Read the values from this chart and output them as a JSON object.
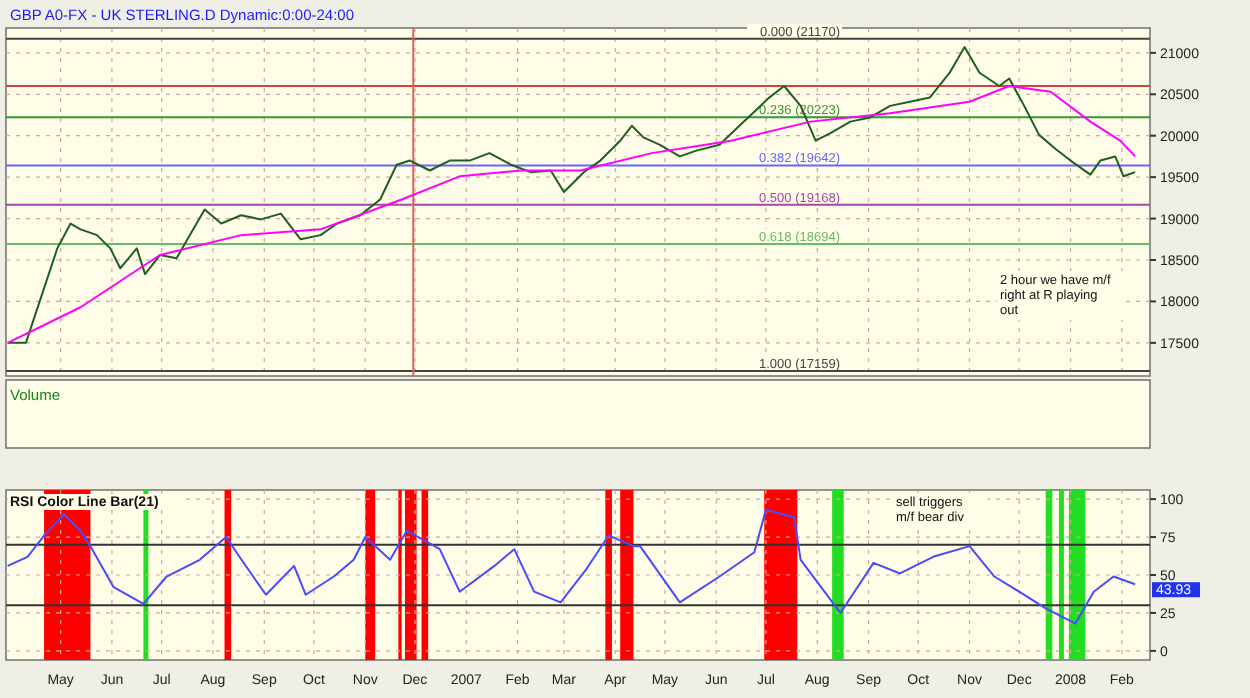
{
  "chart_data": [
    {
      "type": "line",
      "title": "GBP A0-FX - UK STERLING.D Dynamic:0:00-24:00",
      "xlim": [
        "2006-04-12",
        "2008-03-03"
      ],
      "ylim": [
        17100,
        21300
      ],
      "yticks": [
        17500,
        18000,
        18500,
        19000,
        19500,
        20000,
        20500,
        21000
      ],
      "tick_labels": "y",
      "grid": true,
      "xticks": [
        {
          "value": "2006-05-15",
          "label": null
        },
        {
          "value": "2006-06-15",
          "label": null
        },
        {
          "value": "2006-07-15",
          "label": null
        },
        {
          "value": "2006-08-15",
          "label": null
        },
        {
          "value": "2006-09-15",
          "label": null
        },
        {
          "value": "2006-10-15",
          "label": null
        },
        {
          "value": "2006-11-15",
          "label": null
        },
        {
          "value": "2006-12-15",
          "label": null
        },
        {
          "value": "2007-01-15",
          "label": null
        },
        {
          "value": "2007-02-15",
          "label": null
        },
        {
          "value": "2007-03-15",
          "label": null
        },
        {
          "value": "2007-04-15",
          "label": null
        },
        {
          "value": "2007-05-15",
          "label": null
        },
        {
          "value": "2007-06-15",
          "label": null
        },
        {
          "value": "2007-07-15",
          "label": null
        },
        {
          "value": "2007-08-15",
          "label": null
        },
        {
          "value": "2007-09-15",
          "label": null
        },
        {
          "value": "2007-10-15",
          "label": null
        },
        {
          "value": "2007-11-15",
          "label": null
        },
        {
          "value": "2007-12-15",
          "label": null
        },
        {
          "value": "2008-01-15",
          "label": null
        },
        {
          "value": "2008-02-15",
          "label": null
        }
      ],
      "series": [
        {
          "color": "#1f5f1f",
          "x": [
            "2006-04-13",
            "2006-04-24",
            "2006-05-03",
            "2006-05-13",
            "2006-05-21",
            "2006-05-27",
            "2006-06-06",
            "2006-06-14",
            "2006-06-20",
            "2006-06-30",
            "2006-07-05",
            "2006-07-14",
            "2006-07-24",
            "2006-08-01",
            "2006-08-10",
            "2006-08-20",
            "2006-09-01",
            "2006-09-13",
            "2006-09-25",
            "2006-10-07",
            "2006-10-19",
            "2006-10-29",
            "2006-11-12",
            "2006-11-24",
            "2006-12-04",
            "2006-12-12",
            "2006-12-24",
            "2007-01-05",
            "2007-01-17",
            "2007-01-29",
            "2007-02-11",
            "2007-02-23",
            "2007-03-07",
            "2007-03-15",
            "2007-03-27",
            "2007-04-06",
            "2007-04-18",
            "2007-04-25",
            "2007-05-02",
            "2007-05-12",
            "2007-05-24",
            "2007-06-03",
            "2007-06-17",
            "2007-06-29",
            "2007-07-17",
            "2007-07-26",
            "2007-08-05",
            "2007-08-14",
            "2007-08-23",
            "2007-09-04",
            "2007-09-16",
            "2007-09-28",
            "2007-10-10",
            "2007-10-22",
            "2007-11-03",
            "2007-11-12",
            "2007-11-21",
            "2007-12-03",
            "2007-12-09",
            "2007-12-18",
            "2007-12-27",
            "2008-01-06",
            "2008-01-15",
            "2008-01-27",
            "2008-02-02",
            "2008-02-11",
            "2008-02-16",
            "2008-02-23"
          ],
          "values": [
            17500,
            17500,
            18040,
            18640,
            18940,
            18870,
            18800,
            18640,
            18400,
            18640,
            18330,
            18560,
            18520,
            18800,
            19110,
            18940,
            19040,
            18990,
            19060,
            18750,
            18800,
            18940,
            19040,
            19230,
            19650,
            19700,
            19580,
            19700,
            19700,
            19790,
            19650,
            19560,
            19580,
            19320,
            19560,
            19700,
            19940,
            20120,
            19980,
            19890,
            19750,
            19820,
            19890,
            20120,
            20460,
            20600,
            20360,
            19940,
            20030,
            20170,
            20220,
            20360,
            20410,
            20460,
            20760,
            21070,
            20760,
            20600,
            20690,
            20360,
            20010,
            19840,
            19700,
            19530,
            19700,
            19750,
            19510,
            19560
          ]
        },
        {
          "color": "#ff00ff",
          "x": [
            "2006-04-13",
            "2006-05-27",
            "2006-07-14",
            "2006-09-01",
            "2006-10-19",
            "2006-12-07",
            "2007-01-11",
            "2007-02-17",
            "2007-03-25",
            "2007-05-07",
            "2007-06-24",
            "2007-08-11",
            "2007-09-28",
            "2007-11-15",
            "2007-12-09",
            "2008-01-03",
            "2008-01-27",
            "2008-02-14",
            "2008-02-23"
          ],
          "values": [
            17500,
            17930,
            18560,
            18800,
            18870,
            19230,
            19510,
            19580,
            19580,
            19790,
            19940,
            20170,
            20270,
            20410,
            20600,
            20530,
            20170,
            19940,
            19750
          ]
        }
      ],
      "ref_lines": [
        {
          "axis": "y",
          "value": 21170,
          "label": "0.000 (21170)",
          "color": "#444444"
        },
        {
          "axis": "y",
          "value": 20600,
          "label": null,
          "color": "#cc4444"
        },
        {
          "axis": "y",
          "value": 20223,
          "label": "0.236 (20223)",
          "color": "#339933"
        },
        {
          "axis": "y",
          "value": 19642,
          "label": "0.382 (19642)",
          "color": "#6666ff"
        },
        {
          "axis": "y",
          "value": 19168,
          "label": "0.500 (19168)",
          "color": "#aa44aa"
        },
        {
          "axis": "y",
          "value": 18694,
          "label": "0.618 (18694)",
          "color": "#66bb66"
        },
        {
          "axis": "y",
          "value": 17159,
          "label": "1.000 (17159)",
          "color": "#444444"
        },
        {
          "axis": "x",
          "value": "2006-12-14",
          "label": null,
          "color": "#e06060"
        }
      ],
      "annotations": [
        "Volume",
        "2 hour we have m/f right at R playing out"
      ]
    },
    {
      "type": "line",
      "title": "RSI Color Line Bar(21)",
      "xlim": [
        "2006-04-12",
        "2008-03-03"
      ],
      "ylim": [
        -6,
        106
      ],
      "yticks": [
        0,
        25,
        50,
        75,
        100
      ],
      "grid": true,
      "xticks": [
        {
          "value": "2006-05-15",
          "label": "May"
        },
        {
          "value": "2006-06-15",
          "label": "Jun"
        },
        {
          "value": "2006-07-15",
          "label": "Jul"
        },
        {
          "value": "2006-08-15",
          "label": "Aug"
        },
        {
          "value": "2006-09-15",
          "label": "Sep"
        },
        {
          "value": "2006-10-15",
          "label": "Oct"
        },
        {
          "value": "2006-11-15",
          "label": "Nov"
        },
        {
          "value": "2006-12-15",
          "label": "Dec"
        },
        {
          "value": "2007-01-15",
          "label": "2007"
        },
        {
          "value": "2007-02-15",
          "label": "Feb"
        },
        {
          "value": "2007-03-15",
          "label": "Mar"
        },
        {
          "value": "2007-04-15",
          "label": "Apr"
        },
        {
          "value": "2007-05-15",
          "label": "May"
        },
        {
          "value": "2007-06-15",
          "label": "Jun"
        },
        {
          "value": "2007-07-15",
          "label": "Jul"
        },
        {
          "value": "2007-08-15",
          "label": "Aug"
        },
        {
          "value": "2007-09-15",
          "label": "Sep"
        },
        {
          "value": "2007-10-15",
          "label": "Oct"
        },
        {
          "value": "2007-11-15",
          "label": "Nov"
        },
        {
          "value": "2007-12-15",
          "label": "Dec"
        },
        {
          "value": "2008-01-15",
          "label": "2008"
        },
        {
          "value": "2008-02-15",
          "label": "Feb"
        }
      ],
      "series": [
        {
          "color": "#4a4aff",
          "x": [
            "2006-04-13",
            "2006-04-25",
            "2006-05-05",
            "2006-05-17",
            "2006-05-27",
            "2006-06-02",
            "2006-06-16",
            "2006-07-04",
            "2006-07-18",
            "2006-08-07",
            "2006-08-23",
            "2006-08-31",
            "2006-09-16",
            "2006-10-03",
            "2006-10-10",
            "2006-10-27",
            "2006-11-08",
            "2006-11-15",
            "2006-11-30",
            "2006-12-10",
            "2006-12-22",
            "2006-12-30",
            "2007-01-11",
            "2007-02-01",
            "2007-02-13",
            "2007-02-25",
            "2007-03-13",
            "2007-03-28",
            "2007-04-11",
            "2007-04-26",
            "2007-04-30",
            "2007-05-24",
            "2007-06-17",
            "2007-07-08",
            "2007-07-15",
            "2007-08-01",
            "2007-08-05",
            "2007-08-29",
            "2007-09-18",
            "2007-10-04",
            "2007-10-24",
            "2007-11-15",
            "2007-11-30",
            "2007-12-15",
            "2007-12-31",
            "2008-01-18",
            "2008-01-29",
            "2008-02-10",
            "2008-02-23"
          ],
          "values": [
            56,
            62,
            76,
            90,
            79,
            69,
            42,
            31,
            49,
            60,
            75,
            62,
            37,
            56,
            37,
            49,
            60,
            75,
            60,
            79,
            72,
            67,
            39,
            56,
            67,
            39,
            32,
            53,
            76,
            69,
            69,
            32,
            49,
            65,
            93,
            88,
            60,
            25,
            58,
            51,
            62,
            69,
            49,
            39,
            28,
            18,
            39,
            49,
            43.93
          ],
          "value_labels": [
            null,
            null,
            null,
            null,
            null,
            null,
            null,
            null,
            null,
            null,
            null,
            null,
            null,
            null,
            null,
            null,
            null,
            null,
            null,
            null,
            null,
            null,
            null,
            null,
            null,
            null,
            null,
            null,
            null,
            null,
            null,
            null,
            null,
            null,
            null,
            null,
            null,
            null,
            null,
            null,
            null,
            null,
            null,
            null,
            null,
            null,
            null,
            null,
            "43.93"
          ]
        }
      ],
      "ref_lines": [
        {
          "axis": "y",
          "value": 70,
          "label": null,
          "color": "#333333"
        },
        {
          "axis": "y",
          "value": 30,
          "label": null,
          "color": "#333333"
        }
      ],
      "bands": [
        {
          "axis": "x",
          "from": "2006-05-05",
          "to": "2006-06-02",
          "color": "#ff0000"
        },
        {
          "axis": "x",
          "from": "2006-07-04",
          "to": "2006-07-07",
          "color": "#22dd22"
        },
        {
          "axis": "x",
          "from": "2006-08-22",
          "to": "2006-08-26",
          "color": "#ff0000"
        },
        {
          "axis": "x",
          "from": "2006-11-15",
          "to": "2006-11-21",
          "color": "#ff0000"
        },
        {
          "axis": "x",
          "from": "2006-12-05",
          "to": "2006-12-07",
          "color": "#ff0000"
        },
        {
          "axis": "x",
          "from": "2006-12-09",
          "to": "2006-12-16",
          "color": "#ff0000"
        },
        {
          "axis": "x",
          "from": "2006-12-19",
          "to": "2006-12-23",
          "color": "#ff0000"
        },
        {
          "axis": "x",
          "from": "2007-04-09",
          "to": "2007-04-13",
          "color": "#ff0000"
        },
        {
          "axis": "x",
          "from": "2007-04-18",
          "to": "2007-04-26",
          "color": "#ff0000"
        },
        {
          "axis": "x",
          "from": "2007-07-14",
          "to": "2007-08-03",
          "color": "#ff0000"
        },
        {
          "axis": "x",
          "from": "2007-08-24",
          "to": "2007-08-31",
          "color": "#22dd22"
        },
        {
          "axis": "x",
          "from": "2007-12-31",
          "to": "2008-01-04",
          "color": "#22dd22"
        },
        {
          "axis": "x",
          "from": "2008-01-08",
          "to": "2008-01-11",
          "color": "#22dd22"
        },
        {
          "axis": "x",
          "from": "2008-01-14",
          "to": "2008-01-24",
          "color": "#22dd22"
        }
      ],
      "annotations": [
        "sell triggers m/f bear div"
      ]
    }
  ]
}
